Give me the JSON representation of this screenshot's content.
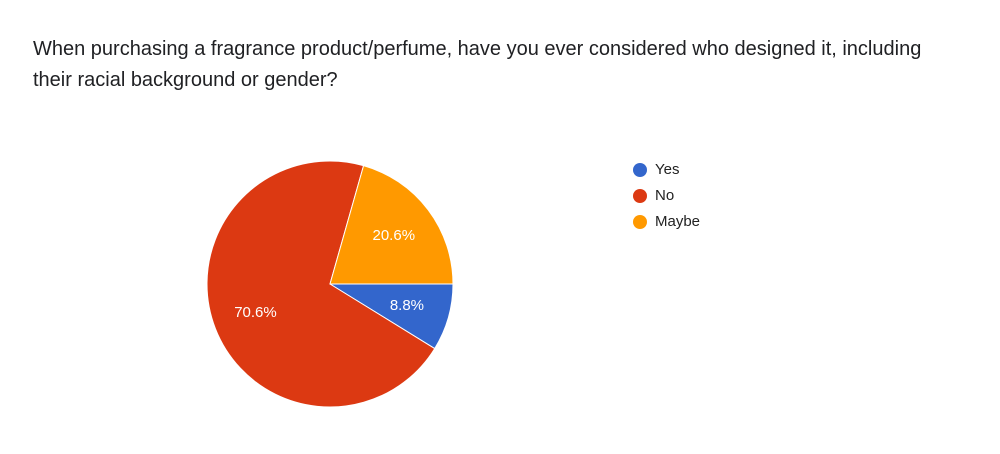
{
  "chart_data": {
    "type": "pie",
    "title": "When purchasing a fragrance product/perfume, have you ever considered who designed it, including their racial background or gender?",
    "categories": [
      "Yes",
      "No",
      "Maybe"
    ],
    "values": [
      8.8,
      70.6,
      20.6
    ],
    "value_labels": [
      "8.8%",
      "70.6%",
      "20.6%"
    ],
    "colors": [
      "#3366cc",
      "#dc3912",
      "#ff9900"
    ],
    "legend": "right"
  }
}
